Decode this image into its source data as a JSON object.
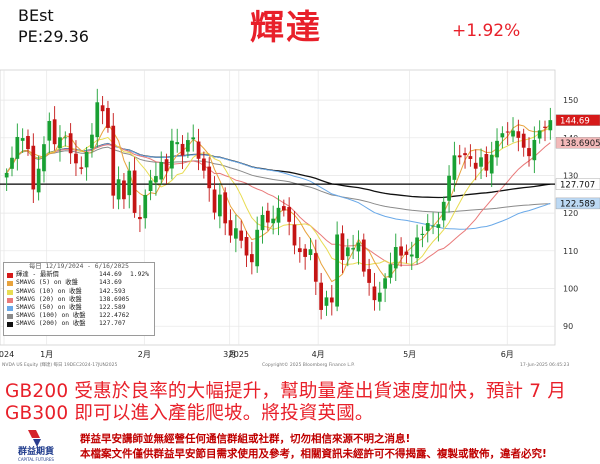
{
  "header": {
    "ticker_name": "BEst",
    "pe": "PE:29.36",
    "title": "輝達",
    "change": "+1.92%"
  },
  "chart_data": {
    "type": "candlestick",
    "ylim": [
      85,
      158
    ],
    "y_ticks": [
      90,
      100,
      110,
      120,
      130,
      140,
      150
    ],
    "x_ticks": [
      {
        "label": "2024",
        "date": "2024-12-19"
      },
      {
        "label": "1月",
        "date": "2025-01-02"
      },
      {
        "label": "2月",
        "date": "2025-02-03"
      },
      {
        "label": "3月",
        "date": "2025-03-03"
      },
      {
        "label": "2025",
        "date": "2025-03-06"
      },
      {
        "label": "4月",
        "date": "2025-04-01"
      },
      {
        "label": "5月",
        "date": "2025-05-01"
      },
      {
        "label": "6月",
        "date": "2025-06-02"
      }
    ],
    "close_series": [
      130.68,
      134.7,
      140.22,
      139.93,
      137.01,
      126.29,
      131.8,
      138.31,
      144.47,
      138.31,
      140.14,
      140.11,
      135.91,
      133.23,
      131.76,
      136.24,
      140.83,
      149.43,
      147.07,
      142.62,
      124.65,
      128.99,
      123.7,
      131.28,
      120.07,
      118.42,
      124.83,
      128.68,
      129.84,
      133.57,
      131.14,
      139.23,
      138.85,
      135.29,
      139.4,
      140.11,
      134.43,
      131.28,
      126.63,
      120.15,
      124.92,
      117.3,
      114.06,
      115.99,
      112.69,
      108.76,
      106.98,
      115.58,
      119.53,
      117.52,
      118.53,
      121.41,
      120.69,
      117.7,
      111.43,
      109.67,
      108.38,
      110.42,
      101.8,
      94.31,
      97.64,
      96.3,
      114.33,
      107.57,
      110.93,
      110.71,
      112.2,
      104.49,
      101.49,
      96.91,
      98.89,
      102.71,
      106.43,
      111.01,
      108.73,
      108.92,
      109.02,
      113.54,
      114.5,
      117.37,
      116.65,
      117.06,
      123.0,
      129.93,
      135.34,
      134.83,
      135.4,
      134.38,
      131.8,
      134.81,
      131.29,
      135.5,
      139.19,
      141.22,
      141.4,
      141.92,
      139.99,
      137.38,
      135.13,
      139.43,
      141.97,
      142.63,
      144.69
    ],
    "series": [
      {
        "name": "輝達 - 最新價",
        "values": [
          144.69
        ],
        "change": "1.92%",
        "color": "#d61a1a"
      },
      {
        "name": "SMAVG (5)  on 收盤",
        "values": [
          143.69
        ],
        "color": "#e8a33d"
      },
      {
        "name": "SMAVG (10)  on 收盤",
        "values": [
          142.593
        ],
        "color": "#e8dc52"
      },
      {
        "name": "SMAVG (20)  on 收盤",
        "values": [
          138.6905
        ],
        "color": "#e97a7a"
      },
      {
        "name": "SMAVG (50)  on 收盤",
        "values": [
          122.589
        ],
        "color": "#6aa9e8"
      },
      {
        "name": "SMAVG (100)  on 收盤",
        "values": [
          122.4762
        ],
        "color": "#8a8a8a"
      },
      {
        "name": "SMAVG (200)  on 收盤",
        "values": [
          127.707
        ],
        "color": "#111111"
      }
    ],
    "price_labels": [
      "144.69",
      "138.6905",
      "127.707",
      "122.589"
    ],
    "legend_header": "每日 12/19/2024 - 6/16/2025",
    "horizontal_line": 127.707,
    "source_left": "NVDA US Equity (輝達) 每日 19DEC2024-17JUN2025",
    "source_center": "Copyright© 2025 Bloomberg Finance L.P.",
    "source_right": "17-Jun-2025 06:45:23"
  },
  "footer": {
    "main_text": "GB200 受惠於良率的大幅提升，幫助量產出貨速度加快，預計 7 月 GB300 即可以進入產能爬坡。將投資英國。",
    "disclaimer_1": "群益早安講師並無經營任何通信群組或社群，切勿相信來源不明之消息!",
    "disclaimer_2": "本檔案文件僅供群益早安節目需求使用及參考，相關資訊未經許可不得揭露、複製或散佈，違者必究!",
    "logo_text": "群益期貨",
    "logo_sub": "CAPITAL FUTURES"
  }
}
